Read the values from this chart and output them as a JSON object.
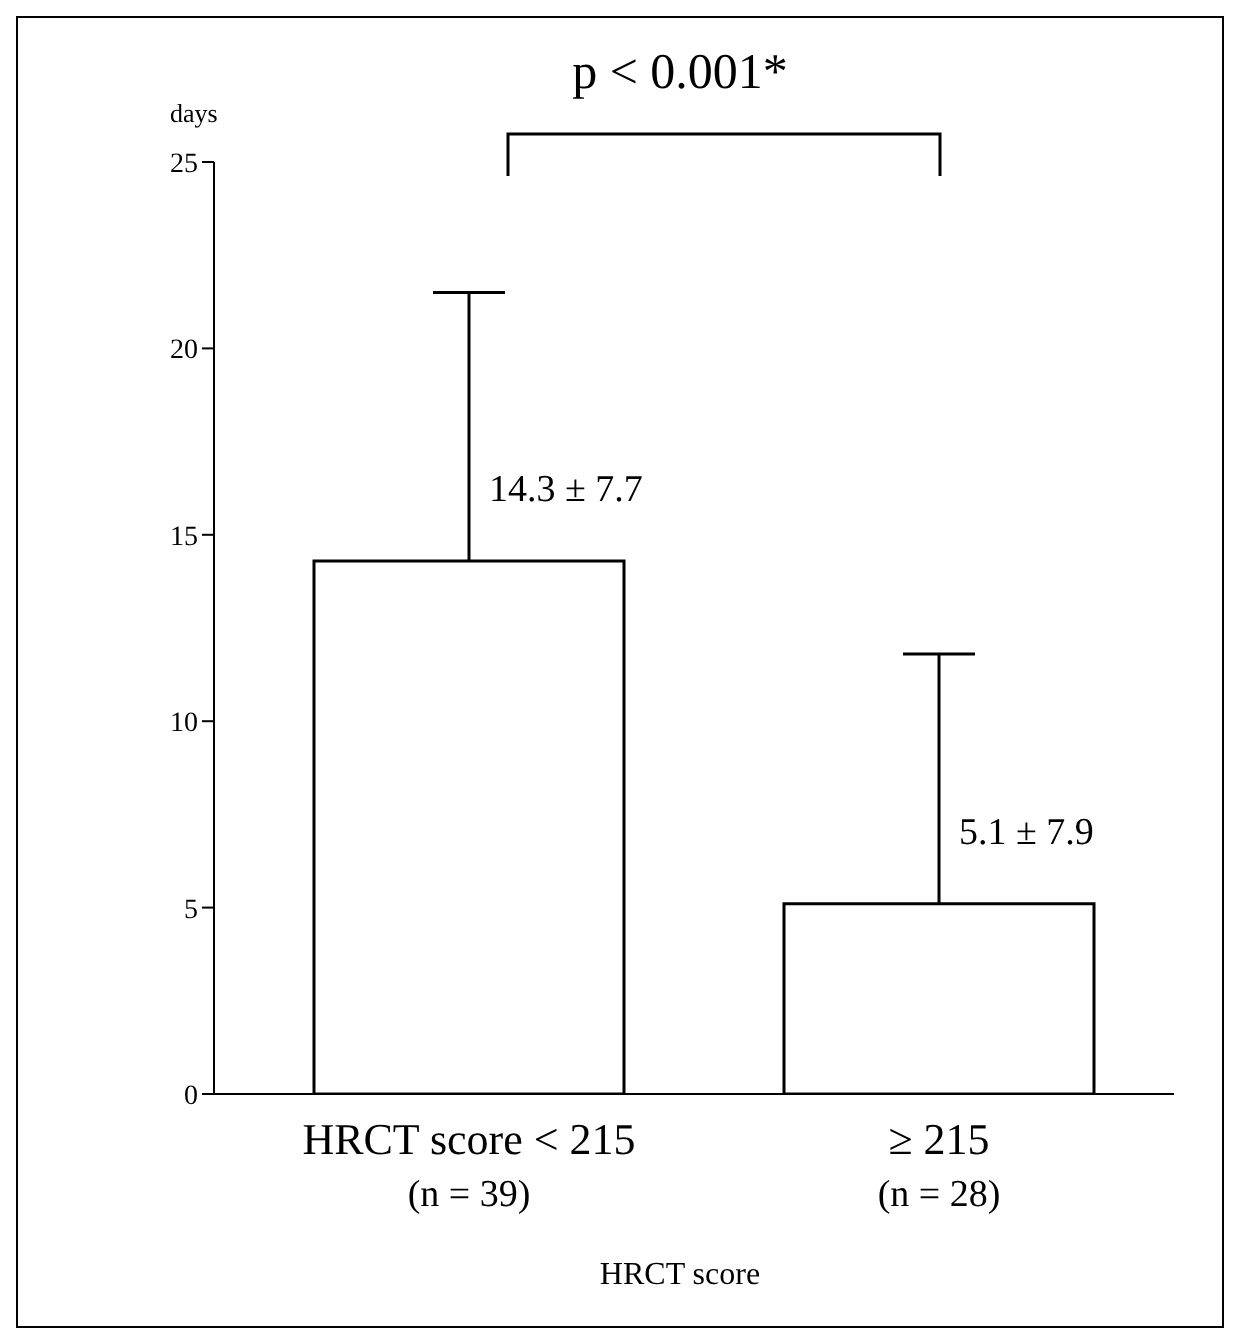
{
  "chart_data": {
    "type": "bar",
    "ylabel": "days",
    "xlabel": "HRCT score",
    "categories": [
      "HRCT score < 215\n(n = 39)",
      "≥ 215\n(n = 28)"
    ],
    "values": [
      14.3,
      5.1
    ],
    "colors": [
      "#ffffff",
      "#ffffff"
    ],
    "errors": [
      [
        14.3,
        21.5
      ],
      [
        5.1,
        11.8
      ]
    ],
    "value_labels": [
      "14.3 ± 7.7",
      "5.1 ± 7.9"
    ],
    "ylim": [
      0,
      25
    ],
    "yticks": [
      0,
      5,
      10,
      15,
      20,
      25
    ],
    "annotations": [
      "p < 0.001*"
    ]
  }
}
